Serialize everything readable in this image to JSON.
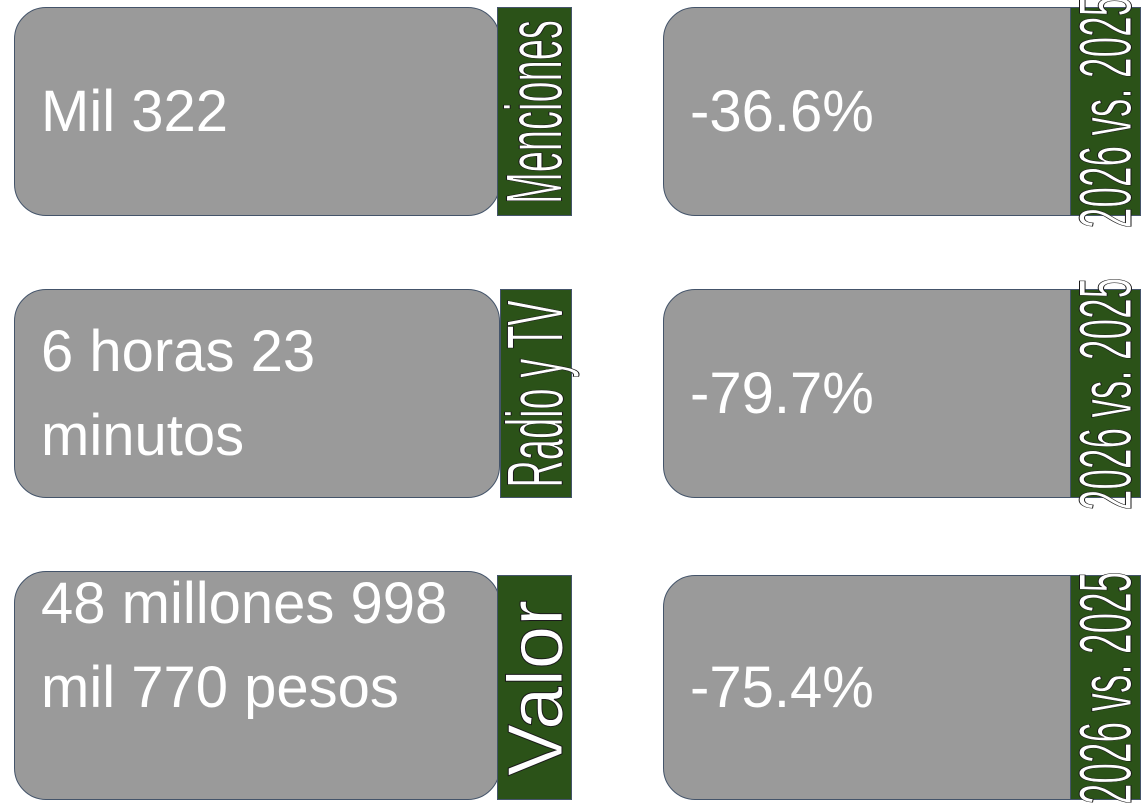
{
  "cards": [
    {
      "value": "Mil 322",
      "label": "Menciones",
      "change": "-36.6%",
      "comparison": "2026 vs. 2025"
    },
    {
      "value": "6 horas 23 minutos",
      "label": "Radio y TV",
      "change": "-79.7%",
      "comparison": "2026 vs. 2025"
    },
    {
      "value": "48 millones 998 mil 770 pesos",
      "label": "Valor",
      "change": "-75.4%",
      "comparison": "2026 vs. 2025"
    }
  ]
}
